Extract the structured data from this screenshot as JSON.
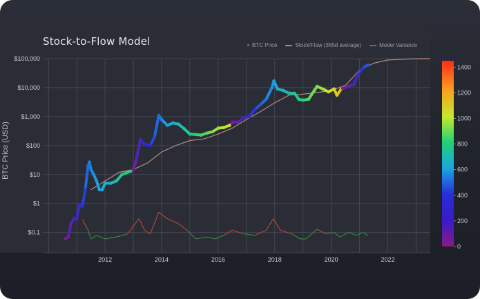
{
  "chart_data": {
    "type": "scatter",
    "title": "Stock-to-Flow Model",
    "ylabel": "BTC Price (USD)",
    "xlabel": "",
    "y_scale": "log",
    "ylim": [
      0.02,
      100000
    ],
    "xlim": [
      2009.8,
      2023.5
    ],
    "y_ticks": [
      "$0.1",
      "$1",
      "$10",
      "$100",
      "$1,000",
      "$10,000",
      "$100,000"
    ],
    "y_tick_values": [
      0.1,
      1,
      10,
      100,
      1000,
      10000,
      100000
    ],
    "x_ticks": [
      "2012",
      "2014",
      "2016",
      "2018",
      "2020",
      "2022"
    ],
    "x_tick_values": [
      2012,
      2014,
      2016,
      2018,
      2020,
      2022
    ],
    "legend": [
      "BTC Price",
      "Stock/Flow (365d average)",
      "Model Variance"
    ],
    "legend_position": "top-right",
    "grid": true,
    "colorbar": {
      "ticks": [
        "0",
        "200",
        "400",
        "600",
        "800",
        "1000",
        "1200",
        "1400"
      ],
      "tick_values": [
        0,
        200,
        400,
        600,
        800,
        1000,
        1200,
        1400
      ],
      "range": [
        0,
        1450
      ],
      "colors": [
        "#8b1a86",
        "#2a2bd8",
        "#1aa6e0",
        "#22d07a",
        "#c8e82a",
        "#f7a21a",
        "#ff2a1a"
      ]
    },
    "series": [
      {
        "name": "BTC Price",
        "color_by": "days until next halving",
        "points": [
          [
            2010.6,
            0.06,
            60
          ],
          [
            2010.7,
            0.07,
            70
          ],
          [
            2010.8,
            0.2,
            120
          ],
          [
            2010.9,
            0.3,
            170
          ],
          [
            2011.0,
            0.3,
            180
          ],
          [
            2011.1,
            0.9,
            200
          ],
          [
            2011.2,
            0.8,
            230
          ],
          [
            2011.3,
            3,
            280
          ],
          [
            2011.4,
            20,
            360
          ],
          [
            2011.45,
            27,
            390
          ],
          [
            2011.5,
            15,
            410
          ],
          [
            2011.6,
            10,
            440
          ],
          [
            2011.7,
            6,
            460
          ],
          [
            2011.8,
            3,
            480
          ],
          [
            2011.9,
            3,
            500
          ],
          [
            2012.0,
            5,
            520
          ],
          [
            2012.2,
            5,
            560
          ],
          [
            2012.4,
            6,
            600
          ],
          [
            2012.6,
            10,
            660
          ],
          [
            2012.8,
            12,
            700
          ],
          [
            2012.9,
            13,
            730
          ],
          [
            2013.0,
            15,
            40
          ],
          [
            2013.1,
            30,
            80
          ],
          [
            2013.25,
            160,
            150
          ],
          [
            2013.4,
            110,
            200
          ],
          [
            2013.6,
            100,
            240
          ],
          [
            2013.75,
            200,
            300
          ],
          [
            2013.9,
            1100,
            360
          ],
          [
            2014.0,
            800,
            400
          ],
          [
            2014.2,
            500,
            460
          ],
          [
            2014.4,
            600,
            520
          ],
          [
            2014.6,
            550,
            570
          ],
          [
            2014.8,
            380,
            620
          ],
          [
            2015.0,
            250,
            680
          ],
          [
            2015.2,
            240,
            720
          ],
          [
            2015.4,
            230,
            760
          ],
          [
            2015.6,
            270,
            800
          ],
          [
            2015.8,
            300,
            850
          ],
          [
            2016.0,
            400,
            900
          ],
          [
            2016.2,
            420,
            960
          ],
          [
            2016.4,
            500,
            1000
          ],
          [
            2016.5,
            650,
            40
          ],
          [
            2016.7,
            650,
            90
          ],
          [
            2016.9,
            900,
            140
          ],
          [
            2017.1,
            1000,
            200
          ],
          [
            2017.3,
            1800,
            260
          ],
          [
            2017.5,
            2600,
            330
          ],
          [
            2017.7,
            4000,
            380
          ],
          [
            2017.9,
            10000,
            430
          ],
          [
            2017.97,
            17000,
            460
          ],
          [
            2018.1,
            9000,
            500
          ],
          [
            2018.3,
            8000,
            560
          ],
          [
            2018.5,
            6500,
            600
          ],
          [
            2018.7,
            6400,
            660
          ],
          [
            2018.85,
            4000,
            700
          ],
          [
            2019.0,
            3700,
            740
          ],
          [
            2019.2,
            4000,
            780
          ],
          [
            2019.4,
            8000,
            830
          ],
          [
            2019.5,
            11000,
            860
          ],
          [
            2019.7,
            9000,
            900
          ],
          [
            2019.9,
            7200,
            960
          ],
          [
            2020.1,
            9000,
            1010
          ],
          [
            2020.2,
            5500,
            1060
          ],
          [
            2020.35,
            9000,
            1120
          ],
          [
            2020.4,
            9500,
            30
          ],
          [
            2020.6,
            11000,
            80
          ],
          [
            2020.8,
            13000,
            140
          ],
          [
            2020.95,
            29000,
            200
          ],
          [
            2021.1,
            45000,
            260
          ],
          [
            2021.2,
            55000,
            300
          ],
          [
            2021.3,
            60000,
            330
          ]
        ]
      },
      {
        "name": "Stock/Flow (365d average)",
        "color": "#b58a7e",
        "points": [
          [
            2011.5,
            3
          ],
          [
            2012.0,
            6
          ],
          [
            2012.5,
            12
          ],
          [
            2013.0,
            15
          ],
          [
            2013.5,
            25
          ],
          [
            2014.0,
            60
          ],
          [
            2014.5,
            100
          ],
          [
            2015.0,
            150
          ],
          [
            2015.5,
            170
          ],
          [
            2016.0,
            250
          ],
          [
            2016.5,
            400
          ],
          [
            2017.0,
            800
          ],
          [
            2017.5,
            1500
          ],
          [
            2018.0,
            3000
          ],
          [
            2018.5,
            5500
          ],
          [
            2019.0,
            6000
          ],
          [
            2019.5,
            6800
          ],
          [
            2020.0,
            8000
          ],
          [
            2020.5,
            12000
          ],
          [
            2021.0,
            40000
          ],
          [
            2021.5,
            70000
          ],
          [
            2022.0,
            90000
          ],
          [
            2022.5,
            95000
          ],
          [
            2023.0,
            100000
          ],
          [
            2023.5,
            100000
          ]
        ]
      },
      {
        "name": "Model Variance",
        "color_segments": [
          "#c0463e",
          "#3d8c3e"
        ],
        "baseline": 0.1,
        "points": [
          [
            2011.2,
            0.28
          ],
          [
            2011.4,
            0.12
          ],
          [
            2011.5,
            0.06
          ],
          [
            2011.7,
            0.08
          ],
          [
            2012.0,
            0.06
          ],
          [
            2012.4,
            0.07
          ],
          [
            2012.8,
            0.09
          ],
          [
            2013.2,
            0.3
          ],
          [
            2013.4,
            0.12
          ],
          [
            2013.6,
            0.09
          ],
          [
            2013.9,
            0.5
          ],
          [
            2014.2,
            0.3
          ],
          [
            2014.6,
            0.2
          ],
          [
            2014.9,
            0.12
          ],
          [
            2015.2,
            0.06
          ],
          [
            2015.6,
            0.07
          ],
          [
            2015.9,
            0.06
          ],
          [
            2016.2,
            0.08
          ],
          [
            2016.5,
            0.12
          ],
          [
            2016.9,
            0.09
          ],
          [
            2017.3,
            0.08
          ],
          [
            2017.7,
            0.12
          ],
          [
            2017.95,
            0.3
          ],
          [
            2018.2,
            0.12
          ],
          [
            2018.6,
            0.09
          ],
          [
            2018.9,
            0.06
          ],
          [
            2019.1,
            0.06
          ],
          [
            2019.5,
            0.13
          ],
          [
            2019.8,
            0.09
          ],
          [
            2020.1,
            0.1
          ],
          [
            2020.3,
            0.07
          ],
          [
            2020.6,
            0.1
          ],
          [
            2020.9,
            0.08
          ],
          [
            2021.1,
            0.1
          ],
          [
            2021.3,
            0.08
          ]
        ]
      }
    ]
  }
}
